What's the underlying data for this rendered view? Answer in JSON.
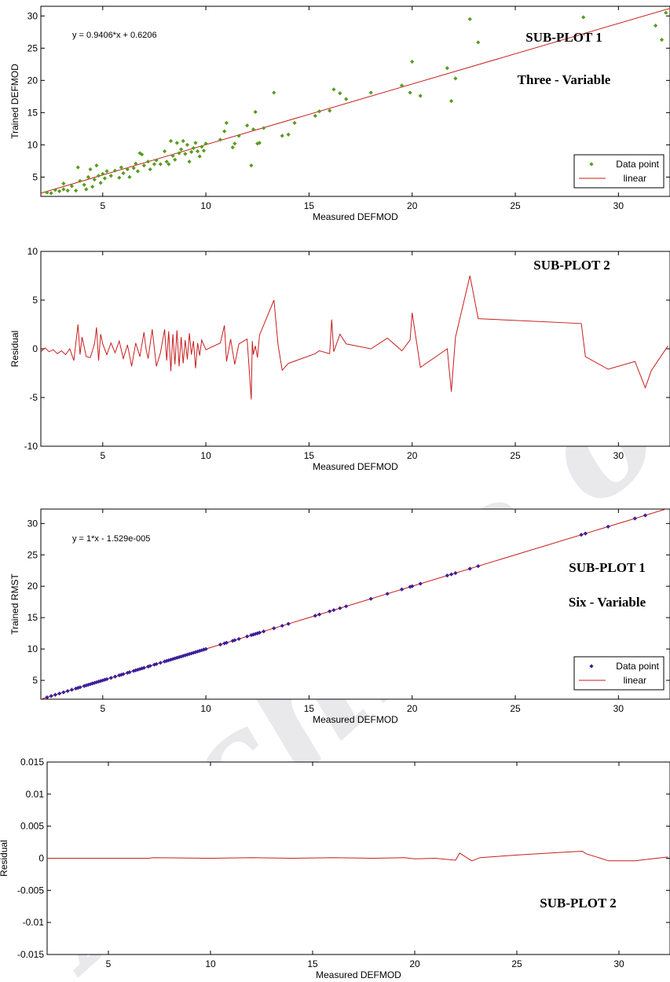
{
  "watermark": "Archive of SID",
  "chart_data": [
    {
      "type": "scatter",
      "id": "p1",
      "xlabel": "Measured DEFMOD",
      "ylabel": "Trained DEFMOD",
      "xlim": [
        2,
        32.5
      ],
      "ylim": [
        2,
        31.5
      ],
      "xticks": [
        5,
        10,
        15,
        20,
        25,
        30
      ],
      "yticks": [
        5,
        10,
        15,
        20,
        25,
        30
      ],
      "equation": "y = 0.9406*x + 0.6206",
      "annotations": [
        "SUB-PLOT 1",
        "Three - Variable"
      ],
      "legend": [
        "Data point",
        "linear"
      ],
      "legend_position": "bottom-right",
      "point_color": "#5a9b1e",
      "line_color": "#c81e1e",
      "fit": {
        "slope": 0.9406,
        "intercept": 0.6206
      },
      "points": [
        [
          2.3,
          2.6
        ],
        [
          2.5,
          2.5
        ],
        [
          2.7,
          3.0
        ],
        [
          2.9,
          2.8
        ],
        [
          3.1,
          3.1
        ],
        [
          3.1,
          4.0
        ],
        [
          3.3,
          2.9
        ],
        [
          3.5,
          3.6
        ],
        [
          3.7,
          2.9
        ],
        [
          3.8,
          6.5
        ],
        [
          3.9,
          4.4
        ],
        [
          4.1,
          3.8
        ],
        [
          4.2,
          3.1
        ],
        [
          4.3,
          5.0
        ],
        [
          4.4,
          6.2
        ],
        [
          4.5,
          3.5
        ],
        [
          4.6,
          4.6
        ],
        [
          4.7,
          6.8
        ],
        [
          4.8,
          5.2
        ],
        [
          4.9,
          4.1
        ],
        [
          5.0,
          5.5
        ],
        [
          5.1,
          4.8
        ],
        [
          5.2,
          5.9
        ],
        [
          5.4,
          5.2
        ],
        [
          5.6,
          6.0
        ],
        [
          5.8,
          4.9
        ],
        [
          5.9,
          6.5
        ],
        [
          6.0,
          5.6
        ],
        [
          6.2,
          6.2
        ],
        [
          6.3,
          5.0
        ],
        [
          6.5,
          6.4
        ],
        [
          6.6,
          7.1
        ],
        [
          6.7,
          5.9
        ],
        [
          6.8,
          8.7
        ],
        [
          6.9,
          8.5
        ],
        [
          7.0,
          6.8
        ],
        [
          7.2,
          7.4
        ],
        [
          7.3,
          6.2
        ],
        [
          7.5,
          7.0
        ],
        [
          7.6,
          7.6
        ],
        [
          7.8,
          7.0
        ],
        [
          8.0,
          9.0
        ],
        [
          8.1,
          7.4
        ],
        [
          8.2,
          7.0
        ],
        [
          8.3,
          10.6
        ],
        [
          8.4,
          8.3
        ],
        [
          8.5,
          7.7
        ],
        [
          8.6,
          10.3
        ],
        [
          8.7,
          8.7
        ],
        [
          8.8,
          9.3
        ],
        [
          8.9,
          10.6
        ],
        [
          9.0,
          8.6
        ],
        [
          9.1,
          10.0
        ],
        [
          9.2,
          7.4
        ],
        [
          9.3,
          8.9
        ],
        [
          9.4,
          9.5
        ],
        [
          9.5,
          10.3
        ],
        [
          9.6,
          9.0
        ],
        [
          9.7,
          8.2
        ],
        [
          9.8,
          9.7
        ],
        [
          9.9,
          9.1
        ],
        [
          10.0,
          10.2
        ],
        [
          10.7,
          10.8
        ],
        [
          10.9,
          12.1
        ],
        [
          11.0,
          13.4
        ],
        [
          11.3,
          9.6
        ],
        [
          11.4,
          10.2
        ],
        [
          11.6,
          11.4
        ],
        [
          12.0,
          13.0
        ],
        [
          12.2,
          6.8
        ],
        [
          12.3,
          12.4
        ],
        [
          12.4,
          15.1
        ],
        [
          12.5,
          10.2
        ],
        [
          12.6,
          10.3
        ],
        [
          12.8,
          12.6
        ],
        [
          13.3,
          18.1
        ],
        [
          13.7,
          11.4
        ],
        [
          14.0,
          11.6
        ],
        [
          14.3,
          13.4
        ],
        [
          15.3,
          14.5
        ],
        [
          15.5,
          15.2
        ],
        [
          16.0,
          15.3
        ],
        [
          16.2,
          18.6
        ],
        [
          16.5,
          18.0
        ],
        [
          16.8,
          17.1
        ],
        [
          18.0,
          18.1
        ],
        [
          19.5,
          19.2
        ],
        [
          19.9,
          18.1
        ],
        [
          20.0,
          22.9
        ],
        [
          20.4,
          17.6
        ],
        [
          21.7,
          21.9
        ],
        [
          21.9,
          16.8
        ],
        [
          22.1,
          20.3
        ],
        [
          22.8,
          29.5
        ],
        [
          23.2,
          25.9
        ],
        [
          28.3,
          29.8
        ],
        [
          31.8,
          28.5
        ],
        [
          32.1,
          26.3
        ],
        [
          32.3,
          30.5
        ]
      ]
    },
    {
      "type": "line",
      "id": "p2",
      "xlabel": "Measured DEFMOD",
      "ylabel": "Residual",
      "xlim": [
        2,
        32.5
      ],
      "ylim": [
        -10,
        10
      ],
      "xticks": [
        5,
        10,
        15,
        20,
        25,
        30
      ],
      "yticks": [
        -10,
        -5,
        0,
        5,
        10
      ],
      "annotations": [
        "SUB-PLOT 2"
      ],
      "line_color": "#c81e1e",
      "x": [
        2.0,
        2.2,
        2.4,
        2.6,
        2.8,
        3.0,
        3.2,
        3.4,
        3.6,
        3.8,
        3.9,
        4.0,
        4.2,
        4.4,
        4.6,
        4.7,
        4.8,
        4.9,
        5.0,
        5.2,
        5.4,
        5.6,
        5.8,
        6.0,
        6.2,
        6.4,
        6.6,
        6.8,
        7.0,
        7.1,
        7.2,
        7.4,
        7.6,
        7.8,
        8.0,
        8.1,
        8.2,
        8.3,
        8.4,
        8.5,
        8.6,
        8.7,
        8.8,
        8.9,
        9.0,
        9.1,
        9.2,
        9.3,
        9.4,
        9.5,
        9.6,
        9.7,
        9.8,
        10.0,
        10.7,
        10.9,
        11.0,
        11.2,
        11.4,
        11.6,
        12.0,
        12.2,
        12.25,
        12.3,
        12.4,
        12.5,
        12.6,
        13.3,
        13.5,
        13.7,
        14.0,
        15.3,
        15.5,
        16.0,
        16.1,
        16.2,
        16.5,
        16.8,
        18.0,
        18.8,
        19.5,
        19.9,
        20.0,
        20.4,
        21.7,
        21.9,
        22.1,
        22.8,
        23.2,
        28.2,
        28.4,
        29.5,
        30.8,
        31.3,
        31.6,
        32.4
      ],
      "y": [
        -0.3,
        0.1,
        -0.3,
        -0.1,
        -0.5,
        -0.2,
        -0.6,
        0.0,
        -1.2,
        2.5,
        -0.6,
        1.2,
        -0.8,
        -0.9,
        0.5,
        2.2,
        -1.2,
        1.5,
        0.5,
        -0.6,
        0.6,
        -0.4,
        0.8,
        -1.0,
        0.4,
        -1.8,
        0.6,
        -0.8,
        1.7,
        0.0,
        -1.0,
        2.0,
        -1.8,
        -0.4,
        2.0,
        -1.2,
        1.8,
        -2.3,
        1.5,
        -1.6,
        1.9,
        -1.8,
        1.2,
        -1.5,
        0.9,
        -1.1,
        1.6,
        -0.6,
        0.8,
        -2.0,
        0.6,
        -0.7,
        0.9,
        -0.1,
        0.6,
        2.4,
        -1.3,
        1.0,
        -1.6,
        0.5,
        1.0,
        -5.2,
        0.8,
        -0.6,
        0.3,
        -0.9,
        1.4,
        5.0,
        0.4,
        -2.2,
        -1.5,
        -0.5,
        -0.2,
        -0.5,
        3.0,
        -0.3,
        1.5,
        0.5,
        0.0,
        1.1,
        -0.2,
        0.9,
        3.7,
        -1.9,
        0.0,
        -4.4,
        1.2,
        7.5,
        3.1,
        2.6,
        -0.8,
        -2.1,
        -1.3,
        -4.0,
        -2.2,
        0.3
      ]
    },
    {
      "type": "scatter",
      "id": "p3",
      "xlabel": "Measured DEFMOD",
      "ylabel": "Trained RMST",
      "xlim": [
        2,
        32.5
      ],
      "ylim": [
        2,
        32.3
      ],
      "xticks": [
        5,
        10,
        15,
        20,
        25,
        30
      ],
      "yticks": [
        5,
        10,
        15,
        20,
        25,
        30
      ],
      "equation": "y = 1*x - 1.529e-005",
      "annotations": [
        "SUB-PLOT 1",
        "Six - Variable"
      ],
      "legend": [
        "Data point",
        "linear"
      ],
      "legend_position": "bottom-right",
      "point_color": "#3a1f9a",
      "line_color": "#c81e1e",
      "fit": {
        "slope": 1,
        "intercept": -1.529e-05
      },
      "points": [
        [
          2.3,
          2.3
        ],
        [
          2.5,
          2.5
        ],
        [
          2.7,
          2.7
        ],
        [
          2.9,
          2.9
        ],
        [
          3.1,
          3.1
        ],
        [
          3.3,
          3.3
        ],
        [
          3.5,
          3.5
        ],
        [
          3.7,
          3.7
        ],
        [
          3.8,
          3.8
        ],
        [
          3.9,
          3.9
        ],
        [
          4.1,
          4.1
        ],
        [
          4.2,
          4.2
        ],
        [
          4.3,
          4.3
        ],
        [
          4.4,
          4.4
        ],
        [
          4.5,
          4.5
        ],
        [
          4.6,
          4.6
        ],
        [
          4.7,
          4.7
        ],
        [
          4.8,
          4.8
        ],
        [
          4.9,
          4.9
        ],
        [
          5.0,
          5.0
        ],
        [
          5.1,
          5.1
        ],
        [
          5.2,
          5.2
        ],
        [
          5.4,
          5.4
        ],
        [
          5.6,
          5.6
        ],
        [
          5.8,
          5.8
        ],
        [
          5.9,
          5.9
        ],
        [
          6.0,
          6.0
        ],
        [
          6.2,
          6.2
        ],
        [
          6.3,
          6.3
        ],
        [
          6.5,
          6.5
        ],
        [
          6.6,
          6.6
        ],
        [
          6.7,
          6.7
        ],
        [
          6.8,
          6.8
        ],
        [
          6.9,
          6.9
        ],
        [
          7.0,
          7.0
        ],
        [
          7.2,
          7.2
        ],
        [
          7.3,
          7.3
        ],
        [
          7.5,
          7.5
        ],
        [
          7.6,
          7.6
        ],
        [
          7.8,
          7.8
        ],
        [
          8.0,
          8.0
        ],
        [
          8.1,
          8.1
        ],
        [
          8.2,
          8.2
        ],
        [
          8.3,
          8.3
        ],
        [
          8.4,
          8.4
        ],
        [
          8.5,
          8.5
        ],
        [
          8.6,
          8.6
        ],
        [
          8.7,
          8.7
        ],
        [
          8.8,
          8.8
        ],
        [
          8.9,
          8.9
        ],
        [
          9.0,
          9.0
        ],
        [
          9.1,
          9.1
        ],
        [
          9.2,
          9.2
        ],
        [
          9.3,
          9.3
        ],
        [
          9.4,
          9.4
        ],
        [
          9.5,
          9.5
        ],
        [
          9.6,
          9.6
        ],
        [
          9.7,
          9.7
        ],
        [
          9.8,
          9.8
        ],
        [
          9.9,
          9.9
        ],
        [
          10.0,
          10.0
        ],
        [
          10.7,
          10.7
        ],
        [
          10.9,
          10.9
        ],
        [
          11.0,
          11.0
        ],
        [
          11.3,
          11.3
        ],
        [
          11.4,
          11.4
        ],
        [
          11.6,
          11.6
        ],
        [
          12.0,
          12.0
        ],
        [
          12.2,
          12.2
        ],
        [
          12.3,
          12.3
        ],
        [
          12.4,
          12.4
        ],
        [
          12.5,
          12.5
        ],
        [
          12.6,
          12.6
        ],
        [
          12.8,
          12.8
        ],
        [
          13.3,
          13.3
        ],
        [
          13.7,
          13.7
        ],
        [
          14.0,
          14.0
        ],
        [
          15.3,
          15.3
        ],
        [
          15.5,
          15.5
        ],
        [
          16.0,
          16.0
        ],
        [
          16.2,
          16.2
        ],
        [
          16.5,
          16.5
        ],
        [
          16.8,
          16.8
        ],
        [
          18.0,
          18.0
        ],
        [
          18.8,
          18.8
        ],
        [
          19.5,
          19.5
        ],
        [
          19.9,
          19.9
        ],
        [
          20.0,
          20.0
        ],
        [
          20.4,
          20.4
        ],
        [
          21.7,
          21.7
        ],
        [
          21.9,
          21.9
        ],
        [
          22.1,
          22.1
        ],
        [
          22.8,
          22.8
        ],
        [
          23.2,
          23.2
        ],
        [
          28.2,
          28.2
        ],
        [
          28.4,
          28.4
        ],
        [
          29.5,
          29.5
        ],
        [
          30.8,
          30.8
        ],
        [
          31.3,
          31.3
        ]
      ]
    },
    {
      "type": "line",
      "id": "p4",
      "xlabel": "Measured DEFMOD",
      "ylabel": "Residual",
      "xlim": [
        2,
        32.5
      ],
      "ylim": [
        -0.015,
        0.015
      ],
      "xticks": [
        5,
        10,
        15,
        20,
        25,
        30
      ],
      "yticks": [
        -0.015,
        -0.01,
        -0.005,
        0,
        0.005,
        0.01,
        0.015
      ],
      "ytick_labels": [
        "-0.015",
        "-0.01",
        "-0.005",
        "0",
        "0.005",
        "0.01",
        "0.015"
      ],
      "annotations": [
        "SUB-PLOT 2"
      ],
      "line_color": "#c81e1e",
      "x": [
        2.0,
        5.0,
        7.0,
        7.2,
        10.0,
        12.0,
        14.0,
        16.0,
        18.0,
        19.5,
        20.0,
        21.0,
        22.0,
        22.2,
        22.8,
        23.2,
        25.0,
        27.0,
        28.2,
        28.4,
        29.5,
        30.8,
        31.3,
        32.4
      ],
      "y": [
        0,
        0,
        0,
        0.0001,
        0,
        0.0001,
        0,
        0.0001,
        0,
        0.0001,
        -0.0001,
        0,
        -0.0003,
        0.0008,
        -0.0004,
        0.0001,
        0.0005,
        0.0009,
        0.0011,
        0.0007,
        -0.0004,
        -0.0004,
        -0.0002,
        0.0002
      ]
    }
  ]
}
